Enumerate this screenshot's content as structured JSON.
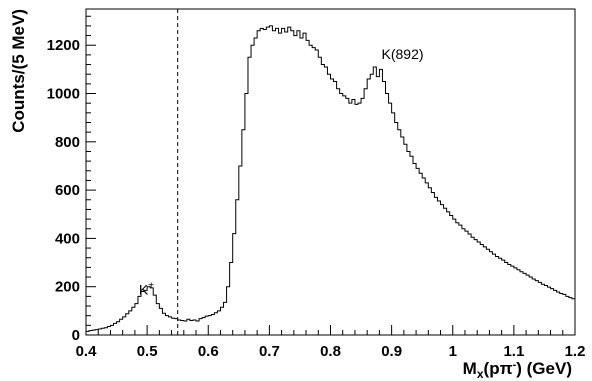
{
  "chart_data": {
    "type": "histogram",
    "bin_width": 0.005,
    "xlim": [
      0.4,
      1.2
    ],
    "ylim": [
      0,
      1350
    ],
    "x_ticks": [
      {
        "value": 0.4,
        "label": "0.4"
      },
      {
        "value": 0.5,
        "label": "0.5"
      },
      {
        "value": 0.6,
        "label": "0.6"
      },
      {
        "value": 0.7,
        "label": "0.7"
      },
      {
        "value": 0.8,
        "label": "0.8"
      },
      {
        "value": 0.9,
        "label": "0.9"
      },
      {
        "value": 1.0,
        "label": "1"
      },
      {
        "value": 1.1,
        "label": "1.1"
      },
      {
        "value": 1.2,
        "label": "1.2"
      }
    ],
    "y_ticks": [
      {
        "value": 0,
        "label": "0"
      },
      {
        "value": 200,
        "label": "200"
      },
      {
        "value": 400,
        "label": "400"
      },
      {
        "value": 600,
        "label": "600"
      },
      {
        "value": 800,
        "label": "800"
      },
      {
        "value": 1000,
        "label": "1000"
      },
      {
        "value": 1200,
        "label": "1200"
      }
    ],
    "xlabel_main": "M",
    "xlabel_sub": "x",
    "xlabel_paren_open": "(pπ",
    "xlabel_sup": "-",
    "xlabel_rest": ") (GeV)",
    "ylabel": "Counts/(5 MeV)",
    "cut_line_x": 0.55,
    "annotations": {
      "kplus_base": "K",
      "kplus_sup": "+",
      "kstar": "K(892)"
    },
    "annotation_anchors": {
      "kplus": {
        "x": 0.493,
        "y": 250
      },
      "kstar": {
        "x": 0.89,
        "y": 1130
      }
    },
    "bin_edges_start": 0.4,
    "counts": [
      15,
      18,
      20,
      22,
      25,
      28,
      30,
      35,
      40,
      48,
      55,
      65,
      75,
      88,
      100,
      115,
      130,
      160,
      180,
      185,
      200,
      195,
      165,
      130,
      110,
      90,
      80,
      75,
      70,
      68,
      62,
      60,
      58,
      65,
      60,
      62,
      58,
      68,
      72,
      78,
      80,
      85,
      92,
      100,
      115,
      135,
      200,
      300,
      420,
      560,
      700,
      850,
      1000,
      1150,
      1200,
      1230,
      1260,
      1270,
      1265,
      1275,
      1280,
      1260,
      1270,
      1250,
      1270,
      1255,
      1275,
      1260,
      1240,
      1260,
      1230,
      1250,
      1220,
      1200,
      1190,
      1180,
      1150,
      1120,
      1110,
      1080,
      1060,
      1050,
      1020,
      1000,
      990,
      980,
      960,
      975,
      955,
      960,
      980,
      1020,
      1060,
      1080,
      1110,
      1070,
      1100,
      1050,
      1000,
      960,
      920,
      880,
      850,
      820,
      790,
      760,
      740,
      710,
      690,
      670,
      650,
      630,
      610,
      590,
      570,
      555,
      540,
      525,
      510,
      495,
      480,
      465,
      455,
      440,
      430,
      418,
      405,
      395,
      385,
      375,
      365,
      355,
      345,
      335,
      325,
      318,
      310,
      300,
      292,
      285,
      278,
      270,
      262,
      255,
      248,
      240,
      232,
      225,
      218,
      210,
      205,
      198,
      192,
      185,
      178,
      172,
      168,
      160,
      155,
      150
    ]
  }
}
